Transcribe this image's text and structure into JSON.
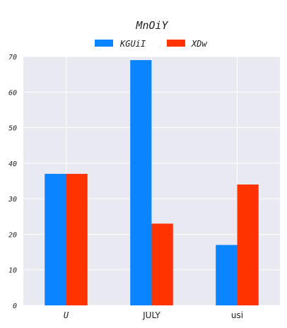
{
  "chart_data": {
    "type": "bar",
    "title": "MnOiY",
    "categories": [
      "U",
      "JULY",
      "usi"
    ],
    "series": [
      {
        "name": "KGUiI",
        "color": "#0a84ff",
        "values": [
          37,
          69,
          17
        ]
      },
      {
        "name": "XDw",
        "color": "#ff3300",
        "values": [
          37,
          23,
          34
        ]
      }
    ],
    "ylim": [
      0,
      70
    ],
    "yticks": [
      "0",
      "10",
      "20",
      "30",
      "40",
      "50",
      "60",
      "70"
    ],
    "grid": true,
    "legend_position": "top-center",
    "background_color": "#e8e9f1"
  }
}
